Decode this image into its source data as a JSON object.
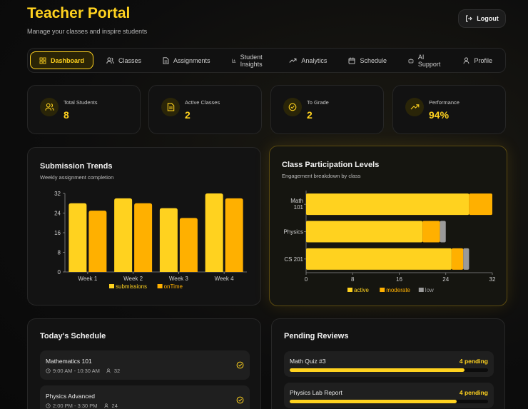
{
  "header": {
    "title": "Teacher Portal",
    "subtitle": "Manage your classes and inspire students",
    "logout_label": "Logout"
  },
  "nav": [
    {
      "label": "Dashboard",
      "icon": "grid-icon",
      "active": true
    },
    {
      "label": "Classes",
      "icon": "users-icon"
    },
    {
      "label": "Assignments",
      "icon": "document-icon"
    },
    {
      "label": "Student Insights",
      "icon": "bar-chart-icon"
    },
    {
      "label": "Analytics",
      "icon": "trend-icon"
    },
    {
      "label": "Schedule",
      "icon": "calendar-icon"
    },
    {
      "label": "AI Support",
      "icon": "bot-icon"
    },
    {
      "label": "Profile",
      "icon": "user-icon"
    }
  ],
  "stats": [
    {
      "label": "Total Students",
      "value": "8",
      "icon": "users-icon"
    },
    {
      "label": "Active Classes",
      "value": "2",
      "icon": "document-icon"
    },
    {
      "label": "To Grade",
      "value": "2",
      "icon": "check-circle-icon"
    },
    {
      "label": "Performance",
      "value": "94%",
      "icon": "trend-icon"
    }
  ],
  "submission_card": {
    "title": "Submission Trends",
    "subtitle": "Weekly assignment completion"
  },
  "participation_card": {
    "title": "Class Participation Levels",
    "subtitle": "Engagement breakdown by class"
  },
  "schedule": {
    "title": "Today's Schedule",
    "items": [
      {
        "name": "Mathematics 101",
        "time": "9:00 AM - 10:30 AM",
        "students": "32"
      },
      {
        "name": "Physics Advanced",
        "time": "2:00 PM - 3:30 PM",
        "students": "24"
      }
    ]
  },
  "reviews": {
    "title": "Pending Reviews",
    "items": [
      {
        "name": "Math Quiz #3",
        "count": "4 pending",
        "progress": 0.88
      },
      {
        "name": "Physics Lab Report",
        "count": "4 pending",
        "progress": 0.84
      }
    ]
  },
  "colors": {
    "accent": "#ffd21f",
    "accent2": "#ffb000",
    "low": "#9a9a9a"
  },
  "chart_data": [
    {
      "type": "bar",
      "title": "Submission Trends",
      "subtitle": "Weekly assignment completion",
      "categories": [
        "Week 1",
        "Week 2",
        "Week 3",
        "Week 4"
      ],
      "series": [
        {
          "name": "submissions",
          "values": [
            28,
            30,
            26,
            32
          ],
          "color": "#ffd21f"
        },
        {
          "name": "onTime",
          "values": [
            25,
            28,
            22,
            30
          ],
          "color": "#ffb000"
        }
      ],
      "ylim": [
        0,
        32
      ],
      "yticks": [
        0,
        8,
        16,
        24,
        32
      ],
      "legend": "bottom",
      "grid": false
    },
    {
      "type": "bar",
      "orientation": "horizontal",
      "stacked": true,
      "title": "Class Participation Levels",
      "subtitle": "Engagement breakdown by class",
      "categories": [
        "Math 101",
        "Physics",
        "CS 201"
      ],
      "series": [
        {
          "name": "active",
          "values": [
            28,
            20,
            25
          ],
          "color": "#ffd21f"
        },
        {
          "name": "moderate",
          "values": [
            4,
            3,
            2
          ],
          "color": "#ffb000"
        },
        {
          "name": "low",
          "values": [
            0,
            1,
            1
          ],
          "color": "#9a9a9a"
        }
      ],
      "xlim": [
        0,
        32
      ],
      "xticks": [
        0,
        8,
        16,
        24,
        32
      ],
      "legend": "bottom",
      "grid": false
    }
  ]
}
